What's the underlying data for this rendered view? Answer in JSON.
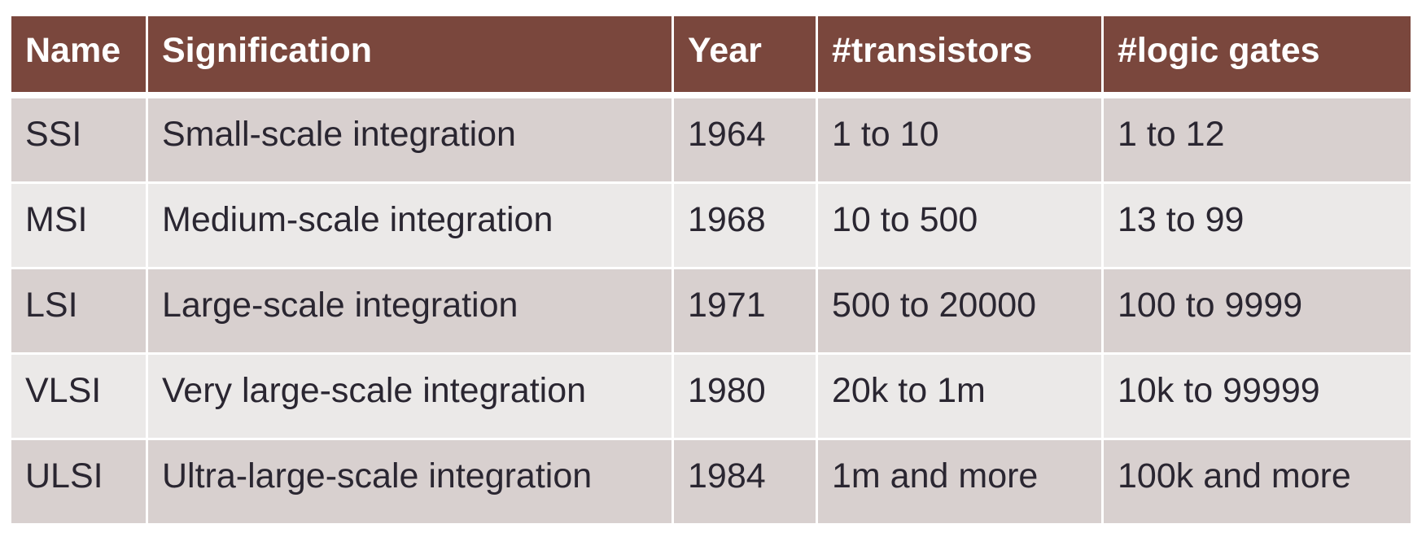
{
  "table": {
    "headers": [
      "Name",
      "Signification",
      "Year",
      "#transistors",
      "#logic gates"
    ],
    "rows": [
      [
        "SSI",
        "Small-scale integration",
        "1964",
        "1 to 10",
        "1 to 12"
      ],
      [
        "MSI",
        "Medium-scale integration",
        "1968",
        "10 to 500",
        "13 to 99"
      ],
      [
        "LSI",
        "Large-scale integration",
        "1971",
        "500 to 20000",
        "100 to 9999"
      ],
      [
        "VLSI",
        "Very large-scale integration",
        "1980",
        "20k to 1m",
        "10k to 99999"
      ],
      [
        "ULSI",
        "Ultra-large-scale integration",
        "1984",
        "1m and more",
        "100k and more"
      ]
    ]
  },
  "colors": {
    "header_bg": "#7a473d",
    "row_odd_bg": "#d8d0cf",
    "row_even_bg": "#ebe9e8",
    "text": "#2a2631"
  }
}
